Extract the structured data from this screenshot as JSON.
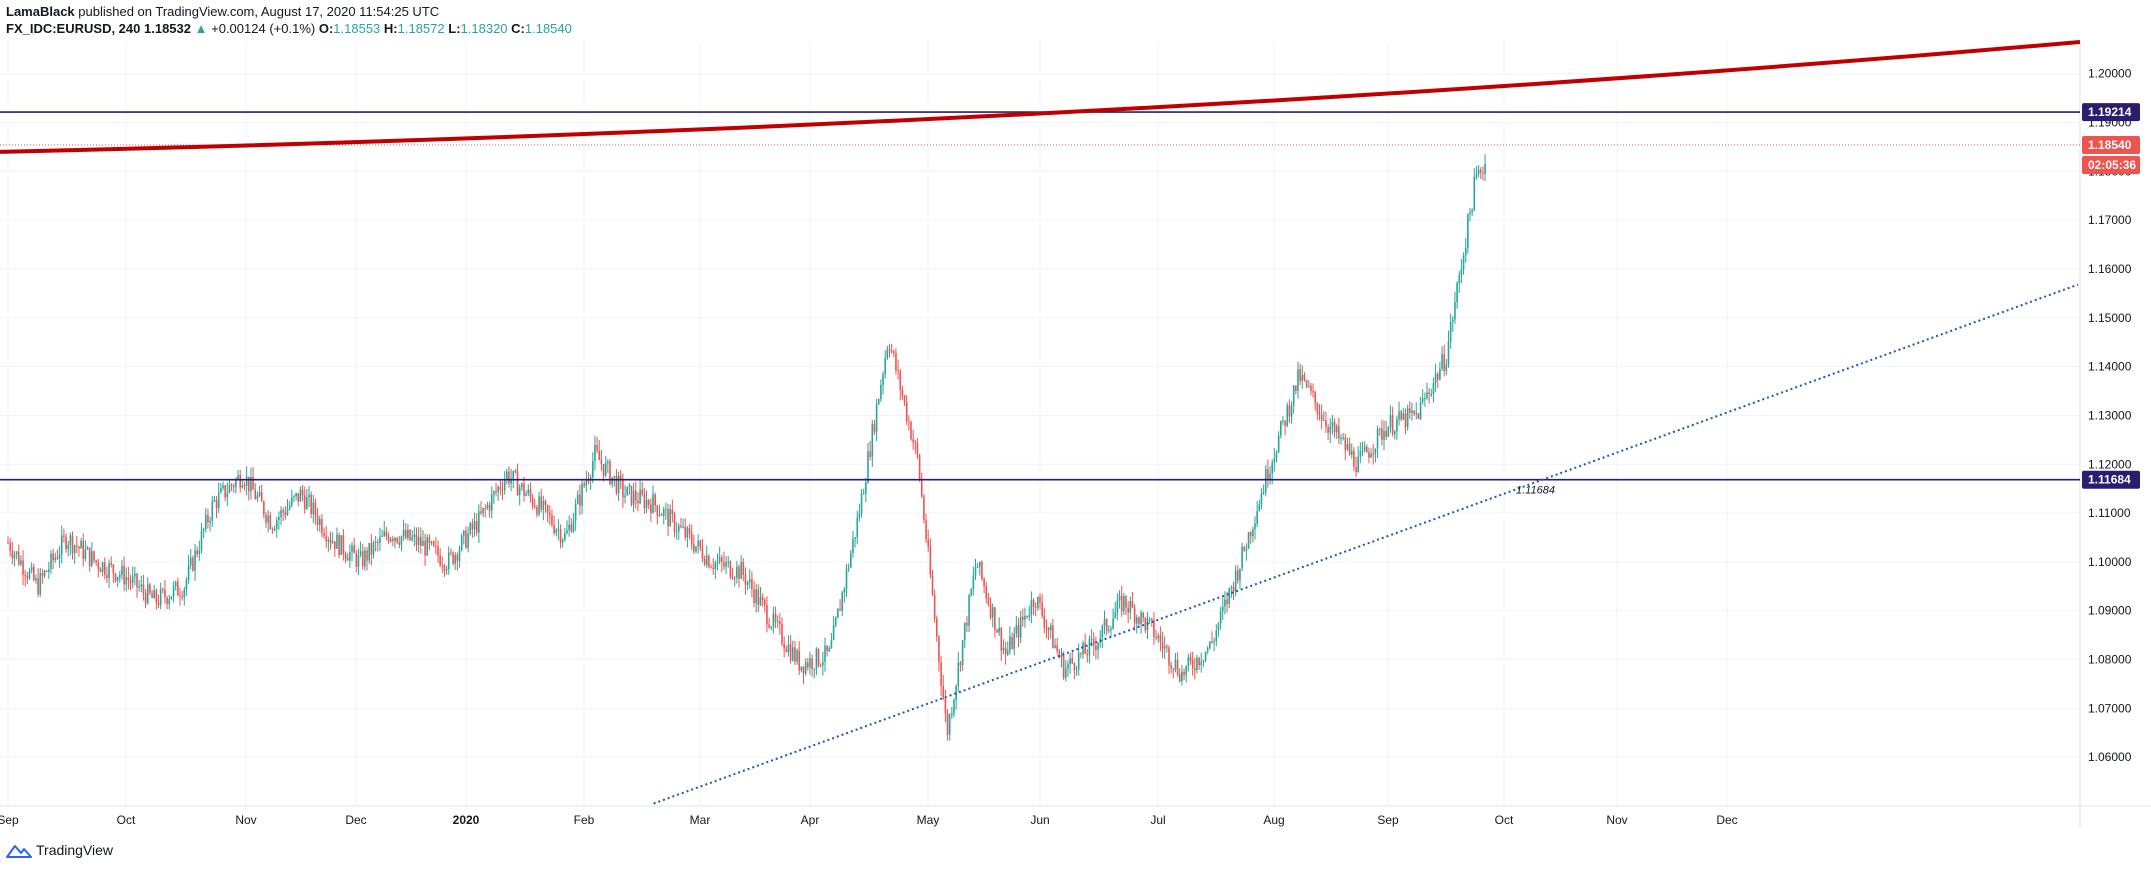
{
  "header": {
    "author": "LamaBlack",
    "published_text": "published on TradingView.com, August 17, 2020 11:54:25 UTC",
    "symbol": "FX_IDC:EURUSD, 240",
    "last": "1.18532",
    "change": "+0.00124 (+0.1%)",
    "open_label": "O:",
    "open": "1.18553",
    "high_label": "H:",
    "high": "1.18572",
    "low_label": "L:",
    "low": "1.18320",
    "close_label": "C:",
    "close": "1.18540"
  },
  "footer": {
    "brand": "TradingView"
  },
  "colors": {
    "up": "#26a69a",
    "down": "#ef5350",
    "level": "#2a1d6e",
    "trend": "#c00000",
    "dotted": "#1e5aa8"
  },
  "chart_data": {
    "type": "candlestick",
    "x_ticks": [
      "Sep",
      "Oct",
      "Nov",
      "Dec",
      "2020",
      "Feb",
      "Mar",
      "Apr",
      "May",
      "Jun",
      "Jul",
      "Aug",
      "Sep",
      "Oct",
      "Nov",
      "Dec"
    ],
    "y_ticks": [
      "1.20000",
      "1.19000",
      "1.18000",
      "1.17000",
      "1.16000",
      "1.15000",
      "1.14000",
      "1.13000",
      "1.12000",
      "1.11000",
      "1.10000",
      "1.09000",
      "1.08000",
      "1.07000",
      "1.06000"
    ],
    "ylim": [
      1.05,
      1.2065
    ],
    "series_path": [
      [
        "2019-09-01",
        1.104
      ],
      [
        "2019-09-08",
        1.095
      ],
      [
        "2019-09-15",
        1.105
      ],
      [
        "2019-09-22",
        1.1
      ],
      [
        "2019-09-29",
        1.097
      ],
      [
        "2019-10-06",
        1.092
      ],
      [
        "2019-10-13",
        1.095
      ],
      [
        "2019-10-20",
        1.112
      ],
      [
        "2019-10-27",
        1.118
      ],
      [
        "2019-11-03",
        1.108
      ],
      [
        "2019-11-10",
        1.114
      ],
      [
        "2019-11-17",
        1.105
      ],
      [
        "2019-11-24",
        1.1
      ],
      [
        "2019-12-01",
        1.106
      ],
      [
        "2019-12-08",
        1.104
      ],
      [
        "2019-12-15",
        1.1
      ],
      [
        "2019-12-22",
        1.108
      ],
      [
        "2019-12-29",
        1.118
      ],
      [
        "2020-01-05",
        1.112
      ],
      [
        "2020-01-12",
        1.105
      ],
      [
        "2020-01-19",
        1.122
      ],
      [
        "2020-01-26",
        1.114
      ],
      [
        "2020-02-02",
        1.112
      ],
      [
        "2020-02-09",
        1.106
      ],
      [
        "2020-02-16",
        1.1
      ],
      [
        "2020-02-23",
        1.098
      ],
      [
        "2020-03-01",
        1.088
      ],
      [
        "2020-03-08",
        1.079
      ],
      [
        "2020-03-15",
        1.081
      ],
      [
        "2020-03-22",
        1.11
      ],
      [
        "2020-03-29",
        1.146
      ],
      [
        "2020-04-05",
        1.121
      ],
      [
        "2020-04-12",
        1.065
      ],
      [
        "2020-04-19",
        1.1
      ],
      [
        "2020-04-26",
        1.081
      ],
      [
        "2020-05-03",
        1.093
      ],
      [
        "2020-05-10",
        1.078
      ],
      [
        "2020-05-17",
        1.083
      ],
      [
        "2020-05-24",
        1.092
      ],
      [
        "2020-05-31",
        1.086
      ],
      [
        "2020-06-07",
        1.077
      ],
      [
        "2020-06-14",
        1.083
      ],
      [
        "2020-06-21",
        1.1
      ],
      [
        "2020-06-28",
        1.12
      ],
      [
        "2020-07-05",
        1.138
      ],
      [
        "2020-07-12",
        1.128
      ],
      [
        "2020-07-19",
        1.12
      ],
      [
        "2020-07-26",
        1.128
      ],
      [
        "2020-08-02",
        1.13
      ],
      [
        "2020-08-09",
        1.142
      ],
      [
        "2020-08-16",
        1.178
      ],
      [
        "2020-08-23",
        1.19
      ],
      [
        "2020-08-30",
        1.174
      ],
      [
        "2020-09-06",
        1.185
      ]
    ],
    "horizontal_levels": [
      {
        "price": 1.19214,
        "label": "1.19214"
      },
      {
        "price": 1.11684,
        "label": "1.11684"
      }
    ],
    "current_price": {
      "price": 1.1854,
      "label": "1.18540",
      "countdown": "02:05:36"
    },
    "annotation": {
      "text": "1.11684"
    },
    "trendline_top": {
      "from": [
        1.184,
        "start"
      ],
      "to": [
        1.2065,
        "end"
      ]
    },
    "trendline_bottom": {
      "from": [
        1.0505,
        "2020-02"
      ],
      "to": [
        1.1568,
        "end"
      ]
    }
  }
}
